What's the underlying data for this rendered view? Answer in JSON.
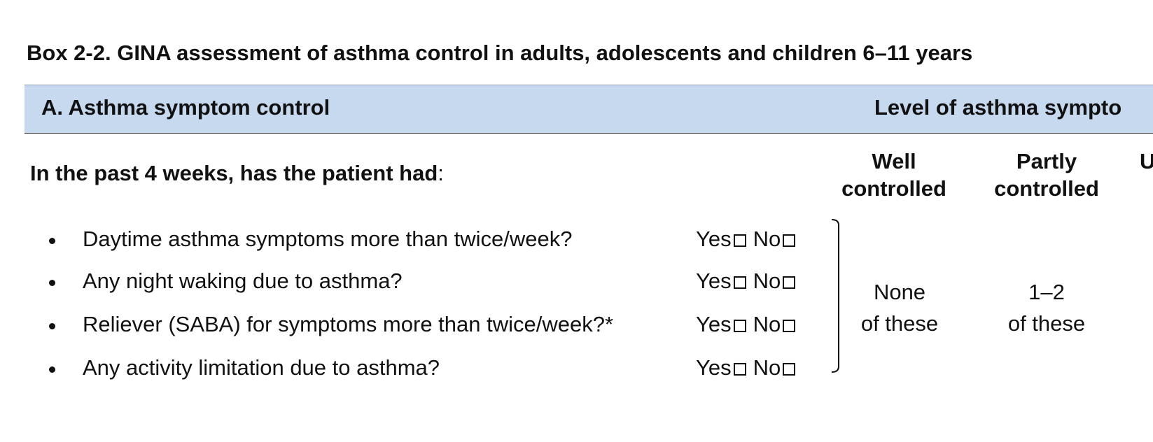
{
  "title": "Box 2-2. GINA assessment of asthma control in adults, adolescents and children 6–11 years",
  "band": {
    "left_label": "A. Asthma symptom control",
    "right_label": "Level of asthma sympto"
  },
  "question": {
    "bold": "In the past 4 weeks, has the patient had",
    "suffix": ":"
  },
  "column_headers": {
    "well": [
      "Well",
      "controlled"
    ],
    "partly": [
      "Partly",
      "controlled"
    ],
    "third_partial": "U"
  },
  "items": [
    {
      "text": "Daytime asthma symptoms more than twice/week?",
      "yes": "Yes",
      "no": "No"
    },
    {
      "text": "Any night waking due to asthma?",
      "yes": "Yes",
      "no": "No"
    },
    {
      "text": "Reliever (SABA) for symptoms more than twice/week?*",
      "yes": "Yes",
      "no": "No"
    },
    {
      "text": "Any activity limitation due to asthma?",
      "yes": "Yes",
      "no": "No"
    }
  ],
  "summary": {
    "well": [
      "None",
      "of these"
    ],
    "partly": [
      "1–2",
      "of these"
    ]
  }
}
